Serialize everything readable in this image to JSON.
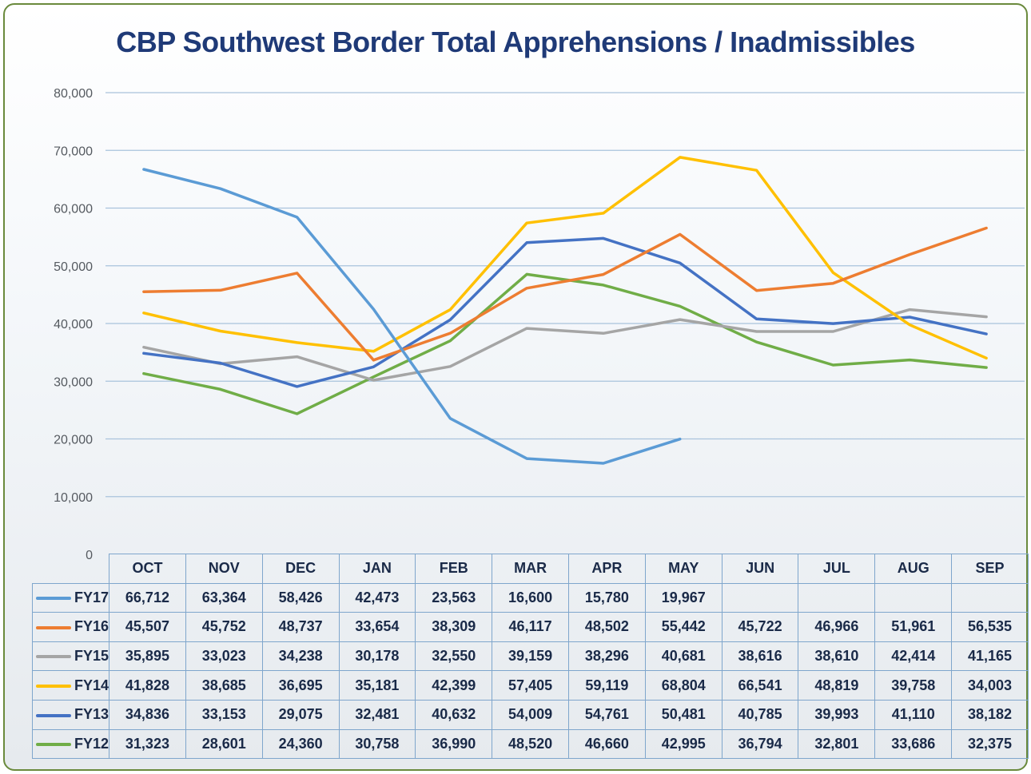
{
  "chart_data": {
    "type": "line",
    "title": "CBP Southwest Border Total Apprehensions / Inadmissibles",
    "categories": [
      "OCT",
      "NOV",
      "DEC",
      "JAN",
      "FEB",
      "MAR",
      "APR",
      "MAY",
      "JUN",
      "JUL",
      "AUG",
      "SEP"
    ],
    "ylim": [
      0,
      80000
    ],
    "yticks": [
      "0",
      "10,000",
      "20,000",
      "30,000",
      "40,000",
      "50,000",
      "60,000",
      "70,000",
      "80,000"
    ],
    "grid": true,
    "legend_placement": "table-left",
    "series": [
      {
        "name": "FY17",
        "color": "#5b9bd5",
        "values": [
          66712,
          63364,
          58426,
          42473,
          23563,
          16600,
          15780,
          19967,
          null,
          null,
          null,
          null
        ],
        "labels": [
          "66,712",
          "63,364",
          "58,426",
          "42,473",
          "23,563",
          "16,600",
          "15,780",
          "19,967",
          "",
          "",
          "",
          ""
        ]
      },
      {
        "name": "FY16",
        "color": "#ed7d31",
        "values": [
          45507,
          45752,
          48737,
          33654,
          38309,
          46117,
          48502,
          55442,
          45722,
          46966,
          51961,
          56535
        ],
        "labels": [
          "45,507",
          "45,752",
          "48,737",
          "33,654",
          "38,309",
          "46,117",
          "48,502",
          "55,442",
          "45,722",
          "46,966",
          "51,961",
          "56,535"
        ]
      },
      {
        "name": "FY15",
        "color": "#a5a5a5",
        "values": [
          35895,
          33023,
          34238,
          30178,
          32550,
          39159,
          38296,
          40681,
          38616,
          38610,
          42414,
          41165
        ],
        "labels": [
          "35,895",
          "33,023",
          "34,238",
          "30,178",
          "32,550",
          "39,159",
          "38,296",
          "40,681",
          "38,616",
          "38,610",
          "42,414",
          "41,165"
        ]
      },
      {
        "name": "FY14",
        "color": "#ffc000",
        "values": [
          41828,
          38685,
          36695,
          35181,
          42399,
          57405,
          59119,
          68804,
          66541,
          48819,
          39758,
          34003
        ],
        "labels": [
          "41,828",
          "38,685",
          "36,695",
          "35,181",
          "42,399",
          "57,405",
          "59,119",
          "68,804",
          "66,541",
          "48,819",
          "39,758",
          "34,003"
        ]
      },
      {
        "name": "FY13",
        "color": "#4472c4",
        "values": [
          34836,
          33153,
          29075,
          32481,
          40632,
          54009,
          54761,
          50481,
          40785,
          39993,
          41110,
          38182
        ],
        "labels": [
          "34,836",
          "33,153",
          "29,075",
          "32,481",
          "40,632",
          "54,009",
          "54,761",
          "50,481",
          "40,785",
          "39,993",
          "41,110",
          "38,182"
        ]
      },
      {
        "name": "FY12",
        "color": "#70ad47",
        "values": [
          31323,
          28601,
          24360,
          30758,
          36990,
          48520,
          46660,
          42995,
          36794,
          32801,
          33686,
          32375
        ],
        "labels": [
          "31,323",
          "28,601",
          "24,360",
          "30,758",
          "36,990",
          "48,520",
          "46,660",
          "42,995",
          "36,794",
          "32,801",
          "33,686",
          "32,375"
        ]
      }
    ]
  }
}
